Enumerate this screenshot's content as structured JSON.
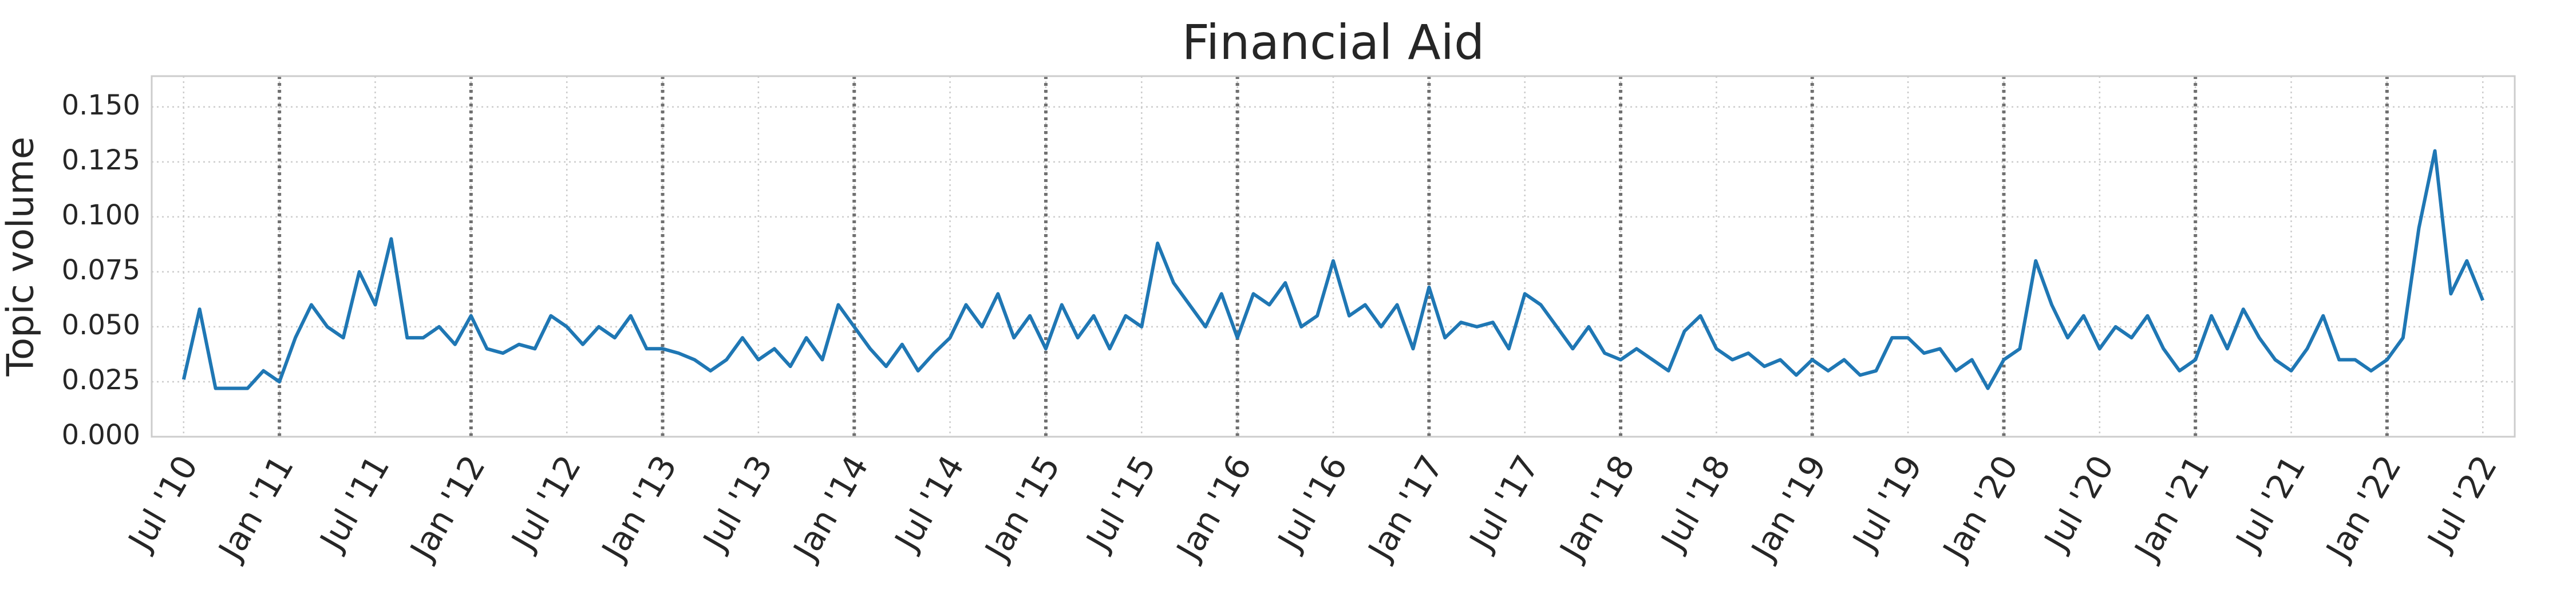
{
  "chart_data": {
    "type": "line",
    "title": "Financial Aid",
    "y_label": "Topic volume",
    "x": [
      "2010-07",
      "2010-08",
      "2010-09",
      "2010-10",
      "2010-11",
      "2010-12",
      "2011-01",
      "2011-02",
      "2011-03",
      "2011-04",
      "2011-05",
      "2011-06",
      "2011-07",
      "2011-08",
      "2011-09",
      "2011-10",
      "2011-11",
      "2011-12",
      "2012-01",
      "2012-02",
      "2012-03",
      "2012-04",
      "2012-05",
      "2012-06",
      "2012-07",
      "2012-08",
      "2012-09",
      "2012-10",
      "2012-11",
      "2012-12",
      "2013-01",
      "2013-02",
      "2013-03",
      "2013-04",
      "2013-05",
      "2013-06",
      "2013-07",
      "2013-08",
      "2013-09",
      "2013-10",
      "2013-11",
      "2013-12",
      "2014-01",
      "2014-02",
      "2014-03",
      "2014-04",
      "2014-05",
      "2014-06",
      "2014-07",
      "2014-08",
      "2014-09",
      "2014-10",
      "2014-11",
      "2014-12",
      "2015-01",
      "2015-02",
      "2015-03",
      "2015-04",
      "2015-05",
      "2015-06",
      "2015-07",
      "2015-08",
      "2015-09",
      "2015-10",
      "2015-11",
      "2015-12",
      "2016-01",
      "2016-02",
      "2016-03",
      "2016-04",
      "2016-05",
      "2016-06",
      "2016-07",
      "2016-08",
      "2016-09",
      "2016-10",
      "2016-11",
      "2016-12",
      "2017-01",
      "2017-02",
      "2017-03",
      "2017-04",
      "2017-05",
      "2017-06",
      "2017-07",
      "2017-08",
      "2017-09",
      "2017-10",
      "2017-11",
      "2017-12",
      "2018-01",
      "2018-02",
      "2018-03",
      "2018-04",
      "2018-05",
      "2018-06",
      "2018-07",
      "2018-08",
      "2018-09",
      "2018-10",
      "2018-11",
      "2018-12",
      "2019-01",
      "2019-02",
      "2019-03",
      "2019-04",
      "2019-05",
      "2019-06",
      "2019-07",
      "2019-08",
      "2019-09",
      "2019-10",
      "2019-11",
      "2019-12",
      "2020-01",
      "2020-02",
      "2020-03",
      "2020-04",
      "2020-05",
      "2020-06",
      "2020-07",
      "2020-08",
      "2020-09",
      "2020-10",
      "2020-11",
      "2020-12",
      "2021-01",
      "2021-02",
      "2021-03",
      "2021-04",
      "2021-05",
      "2021-06",
      "2021-07",
      "2021-08",
      "2021-09",
      "2021-10",
      "2021-11",
      "2021-12",
      "2022-01",
      "2022-02",
      "2022-03",
      "2022-04",
      "2022-05",
      "2022-06",
      "2022-07"
    ],
    "series": [
      {
        "color": "#1f77b4",
        "values": [
          0.026,
          0.058,
          0.022,
          0.022,
          0.022,
          0.03,
          0.025,
          0.045,
          0.06,
          0.05,
          0.045,
          0.075,
          0.06,
          0.09,
          0.045,
          0.045,
          0.05,
          0.042,
          0.055,
          0.04,
          0.038,
          0.042,
          0.04,
          0.055,
          0.05,
          0.042,
          0.05,
          0.045,
          0.055,
          0.04,
          0.04,
          0.038,
          0.035,
          0.03,
          0.035,
          0.045,
          0.035,
          0.04,
          0.032,
          0.045,
          0.035,
          0.06,
          0.05,
          0.04,
          0.032,
          0.042,
          0.03,
          0.038,
          0.045,
          0.06,
          0.05,
          0.065,
          0.045,
          0.055,
          0.04,
          0.06,
          0.045,
          0.055,
          0.04,
          0.055,
          0.05,
          0.088,
          0.07,
          0.06,
          0.05,
          0.065,
          0.045,
          0.065,
          0.06,
          0.07,
          0.05,
          0.055,
          0.08,
          0.055,
          0.06,
          0.05,
          0.06,
          0.04,
          0.068,
          0.045,
          0.052,
          0.05,
          0.052,
          0.04,
          0.065,
          0.06,
          0.05,
          0.04,
          0.05,
          0.038,
          0.035,
          0.04,
          0.035,
          0.03,
          0.048,
          0.055,
          0.04,
          0.035,
          0.038,
          0.032,
          0.035,
          0.028,
          0.035,
          0.03,
          0.035,
          0.028,
          0.03,
          0.045,
          0.045,
          0.038,
          0.04,
          0.03,
          0.035,
          0.022,
          0.035,
          0.04,
          0.08,
          0.06,
          0.045,
          0.055,
          0.04,
          0.05,
          0.045,
          0.055,
          0.04,
          0.03,
          0.035,
          0.055,
          0.04,
          0.058,
          0.045,
          0.035,
          0.03,
          0.04,
          0.055,
          0.035,
          0.035,
          0.03,
          0.035,
          0.045,
          0.095,
          0.13,
          0.065,
          0.08,
          0.062
        ]
      }
    ],
    "xlim": [
      "2010-05",
      "2022-09"
    ],
    "xticks": [
      {
        "value": "2010-07",
        "label": "Jul '10"
      },
      {
        "value": "2011-01",
        "label": "Jan '11"
      },
      {
        "value": "2011-07",
        "label": "Jul '11"
      },
      {
        "value": "2012-01",
        "label": "Jan '12"
      },
      {
        "value": "2012-07",
        "label": "Jul '12"
      },
      {
        "value": "2013-01",
        "label": "Jan '13"
      },
      {
        "value": "2013-07",
        "label": "Jul '13"
      },
      {
        "value": "2014-01",
        "label": "Jan '14"
      },
      {
        "value": "2014-07",
        "label": "Jul '14"
      },
      {
        "value": "2015-01",
        "label": "Jan '15"
      },
      {
        "value": "2015-07",
        "label": "Jul '15"
      },
      {
        "value": "2016-01",
        "label": "Jan '16"
      },
      {
        "value": "2016-07",
        "label": "Jul '16"
      },
      {
        "value": "2017-01",
        "label": "Jan '17"
      },
      {
        "value": "2017-07",
        "label": "Jul '17"
      },
      {
        "value": "2018-01",
        "label": "Jan '18"
      },
      {
        "value": "2018-07",
        "label": "Jul '18"
      },
      {
        "value": "2019-01",
        "label": "Jan '19"
      },
      {
        "value": "2019-07",
        "label": "Jul '19"
      },
      {
        "value": "2020-01",
        "label": "Jan '20"
      },
      {
        "value": "2020-07",
        "label": "Jul '20"
      },
      {
        "value": "2021-01",
        "label": "Jan '21"
      },
      {
        "value": "2021-07",
        "label": "Jul '21"
      },
      {
        "value": "2022-01",
        "label": "Jan '22"
      },
      {
        "value": "2022-07",
        "label": "Jul '22"
      }
    ],
    "ylim": [
      0,
      0.164
    ],
    "yticks": [
      {
        "value": 0,
        "label": "0.000"
      },
      {
        "value": 0.025,
        "label": "0.025"
      },
      {
        "value": 0.05,
        "label": "0.050"
      },
      {
        "value": 0.075,
        "label": "0.075"
      },
      {
        "value": 0.1,
        "label": "0.100"
      },
      {
        "value": 0.125,
        "label": "0.125"
      },
      {
        "value": 0.15,
        "label": "0.150"
      }
    ],
    "vlines": [
      "2011-01",
      "2012-01",
      "2013-01",
      "2014-01",
      "2015-01",
      "2016-01",
      "2017-01",
      "2018-01",
      "2019-01",
      "2020-01",
      "2021-01",
      "2022-01"
    ],
    "grid": true
  }
}
